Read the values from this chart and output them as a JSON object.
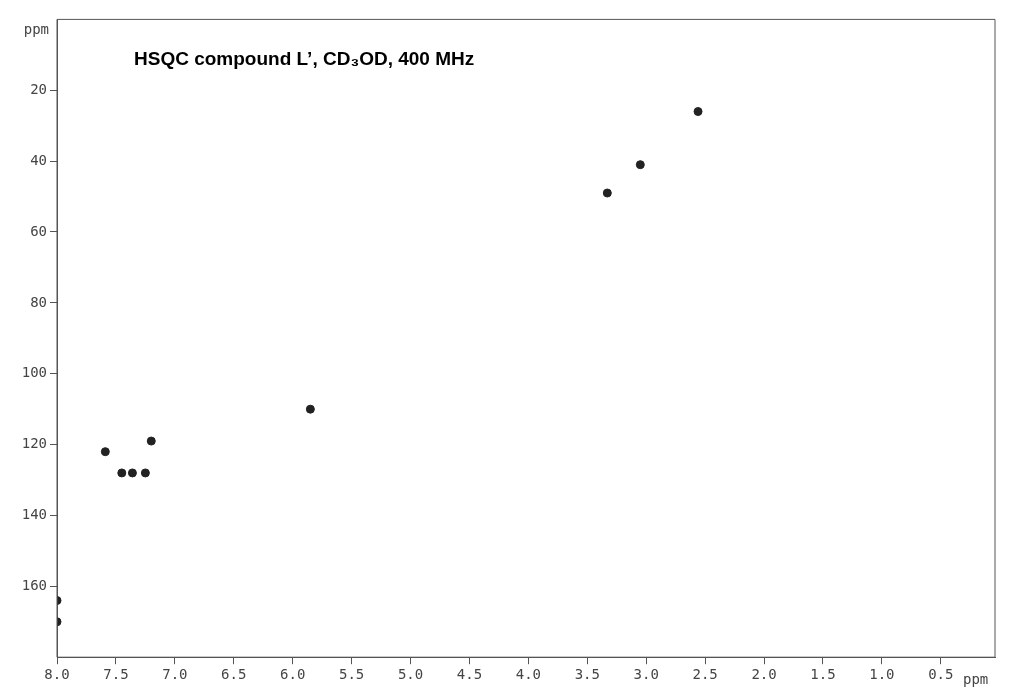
{
  "chart_data": {
    "type": "scatter",
    "title": "HSQC compound L’, CD₃OD, 400 MHz",
    "xlabel": "ppm",
    "ylabel": "ppm",
    "x": [
      3.33,
      3.05,
      2.56,
      5.85,
      7.59,
      7.2,
      7.45,
      7.36,
      7.25,
      8.0,
      8.0
    ],
    "values": [
      49,
      41,
      26,
      110,
      122,
      119,
      128,
      128,
      128,
      164,
      170
    ],
    "color": "#222222",
    "marker": "circle",
    "grid": false,
    "legend": false,
    "xlim": [
      8.0,
      0.04
    ],
    "xticks": [
      {
        "value": 8,
        "label": "8.0"
      },
      7.5,
      {
        "value": 7,
        "label": "7.0"
      },
      6.5,
      {
        "value": 6,
        "label": "6.0"
      },
      5.5,
      {
        "value": 5,
        "label": "5.0"
      },
      4.5,
      {
        "value": 4,
        "label": "4.0"
      },
      3.5,
      {
        "value": 3,
        "label": "3.0"
      },
      2.5,
      {
        "value": 2,
        "label": "2.0"
      },
      1.5,
      {
        "value": 1,
        "label": "1.0"
      },
      0.5
    ],
    "ylim": [
      180,
      0
    ],
    "yticks": [
      20,
      40,
      60,
      80,
      100,
      120,
      140,
      160
    ]
  }
}
